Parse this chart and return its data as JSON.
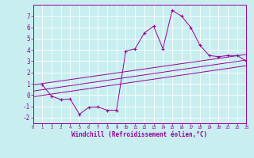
{
  "xlabel": "Windchill (Refroidissement éolien,°C)",
  "bg_color": "#c8eef0",
  "line_color": "#990099",
  "grid_color": "#ffffff",
  "xlim": [
    0,
    23
  ],
  "ylim": [
    -2.5,
    8.0
  ],
  "xticks": [
    0,
    1,
    2,
    3,
    4,
    5,
    6,
    7,
    8,
    9,
    10,
    11,
    12,
    13,
    14,
    15,
    16,
    17,
    18,
    19,
    20,
    21,
    22,
    23
  ],
  "yticks": [
    -2,
    -1,
    0,
    1,
    2,
    3,
    4,
    5,
    6,
    7
  ],
  "scatter_x": [
    1,
    2,
    3,
    4,
    5,
    6,
    7,
    8,
    9,
    10,
    11,
    12,
    13,
    14,
    15,
    16,
    17,
    18,
    19,
    20,
    21,
    22,
    23
  ],
  "scatter_y": [
    0.9,
    -0.1,
    -0.4,
    -0.35,
    -1.7,
    -1.1,
    -1.05,
    -1.35,
    -1.35,
    3.9,
    4.1,
    5.5,
    6.1,
    4.1,
    7.5,
    7.0,
    6.0,
    4.4,
    3.5,
    3.4,
    3.5,
    3.5,
    3.0
  ],
  "reg_line1_x": [
    0,
    23
  ],
  "reg_line1_y": [
    0.9,
    3.6
  ],
  "reg_line2_x": [
    0,
    23
  ],
  "reg_line2_y": [
    0.35,
    3.1
  ],
  "reg_line3_x": [
    0,
    23
  ],
  "reg_line3_y": [
    -0.15,
    2.6
  ],
  "xlabel_fontsize": 5.5,
  "tick_fontsize_x": 4.0,
  "tick_fontsize_y": 5.5
}
